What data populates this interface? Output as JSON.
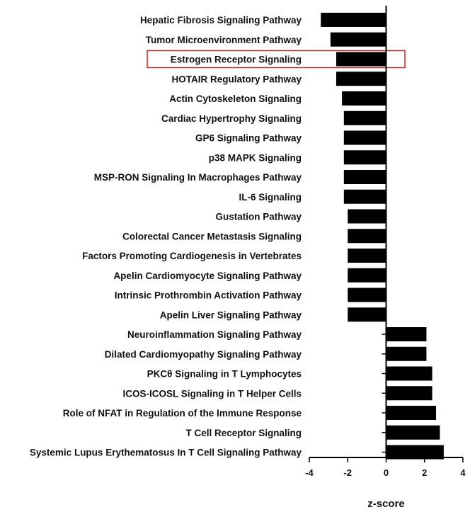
{
  "chart_data": {
    "type": "bar",
    "orientation": "horizontal",
    "categories": [
      "Hepatic Fibrosis Signaling Pathway",
      "Tumor Microenvironment Pathway",
      "Estrogen Receptor Signaling",
      "HOTAIR Regulatory Pathway",
      "Actin Cytoskeleton Signaling",
      "Cardiac Hypertrophy Signaling",
      "GP6 Signaling Pathway",
      "p38 MAPK Signaling",
      "MSP-RON Signaling In Macrophages Pathway",
      "IL-6 Signaling",
      "Gustation Pathway",
      "Colorectal Cancer Metastasis Signaling",
      "Factors Promoting Cardiogenesis in Vertebrates",
      "Apelin Cardiomyocyte Signaling Pathway",
      "Intrinsic Prothrombin Activation Pathway",
      "Apelin Liver Signaling Pathway",
      "Neuroinflammation Signaling Pathway",
      "Dilated Cardiomyopathy Signaling Pathway",
      "PKCθ Signaling in T Lymphocytes",
      "ICOS-ICOSL Signaling in T Helper Cells",
      "Role of NFAT in Regulation of the Immune Response",
      "T Cell Receptor Signaling",
      "Systemic Lupus Erythematosus In T Cell Signaling Pathway"
    ],
    "values": [
      -3.4,
      -2.9,
      -2.6,
      -2.6,
      -2.3,
      -2.2,
      -2.2,
      -2.2,
      -2.2,
      -2.2,
      -2.0,
      -2.0,
      -2.0,
      -2.0,
      -2.0,
      -2.0,
      2.1,
      2.1,
      2.4,
      2.4,
      2.6,
      2.8,
      3.0
    ],
    "highlighted_category": "Estrogen Receptor Signaling",
    "xlabel": "z-score",
    "ylabel": "",
    "title": "",
    "xlim": [
      -4,
      4
    ],
    "xticks": [
      -4,
      -2,
      0,
      2,
      4
    ],
    "grid": false,
    "bar_color": "#000000",
    "highlight_color": "#e0201b"
  }
}
